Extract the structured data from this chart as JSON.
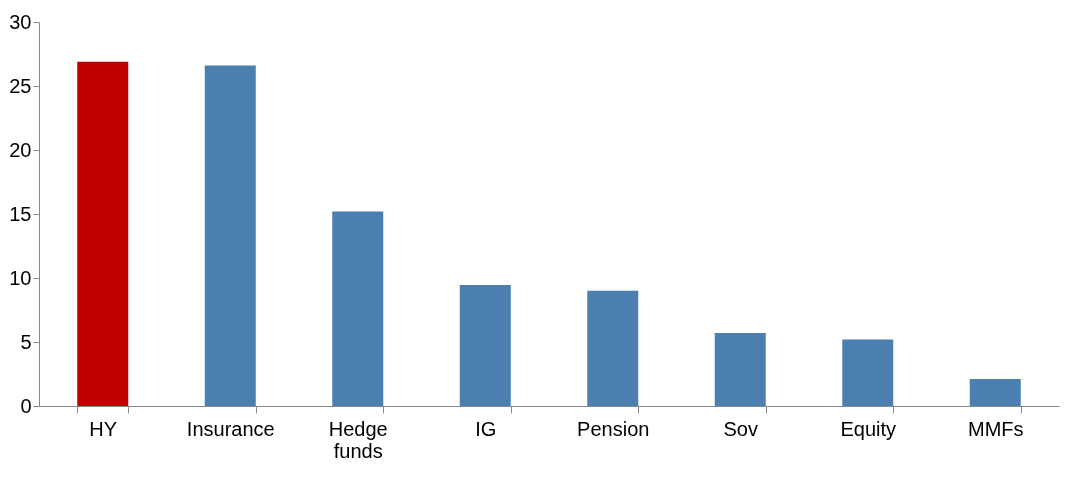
{
  "chart_data": {
    "type": "bar",
    "categories": [
      "HY",
      "Insurance",
      "Hedge funds",
      "IG",
      "Pension",
      "Sov",
      "Equity",
      "MMFs"
    ],
    "values": [
      26.9,
      26.6,
      15.2,
      9.45,
      9.0,
      5.7,
      5.2,
      2.1
    ],
    "colors": [
      "#c00000",
      "#4a7fb0",
      "#4a7fb0",
      "#4a7fb0",
      "#4a7fb0",
      "#4a7fb0",
      "#4a7fb0",
      "#4a7fb0"
    ],
    "ylim": [
      0,
      30
    ],
    "yticks": [
      0,
      5,
      10,
      15,
      20,
      25,
      30
    ],
    "grid": false
  }
}
